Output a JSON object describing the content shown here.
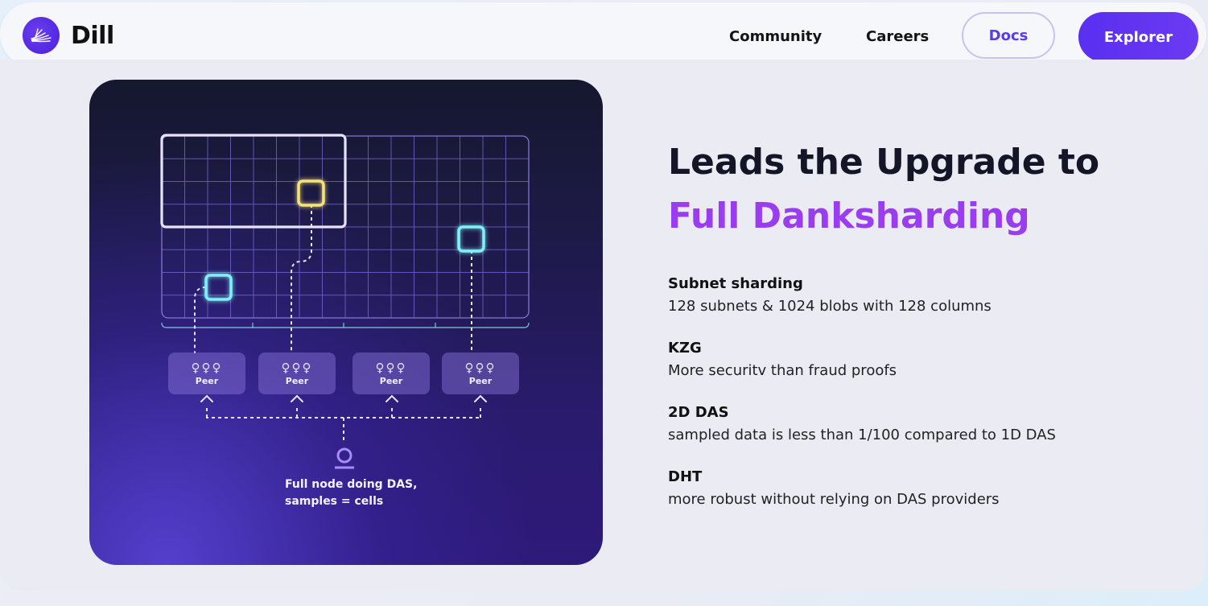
{
  "header": {
    "logo_text": "Dill",
    "nav": {
      "community": "Community",
      "careers": "Careers",
      "docs": "Docs",
      "explorer": "Explorer"
    }
  },
  "diagram": {
    "peers": [
      "Peer",
      "Peer",
      "Peer",
      "Peer"
    ],
    "peer_icon_glyphs": "♀♀♀",
    "caption_line1": "Full node doing DAS,",
    "caption_line2": "samples = cells"
  },
  "main": {
    "headline_part1": "Leads the Upgrade to ",
    "headline_accent": "Full Danksharding",
    "features": [
      {
        "title": "Subnet sharding",
        "description": "128 subnets & 1024 blobs with 128 columns"
      },
      {
        "title": "KZG",
        "description": "More securitv than fraud proofs"
      },
      {
        "title": "2D DAS",
        "description": "sampled data is less than 1/100 compared to 1D DAS"
      },
      {
        "title": "DHT",
        "description": "more robust without relying on DAS providers"
      }
    ]
  },
  "colors": {
    "brand": "#5a2ff0",
    "accent_text": "#9a3cf0",
    "diagram_bg": "#2a1b6e",
    "highlight_yellow": "#f5e27a",
    "highlight_cyan": "#7ff0f5"
  }
}
